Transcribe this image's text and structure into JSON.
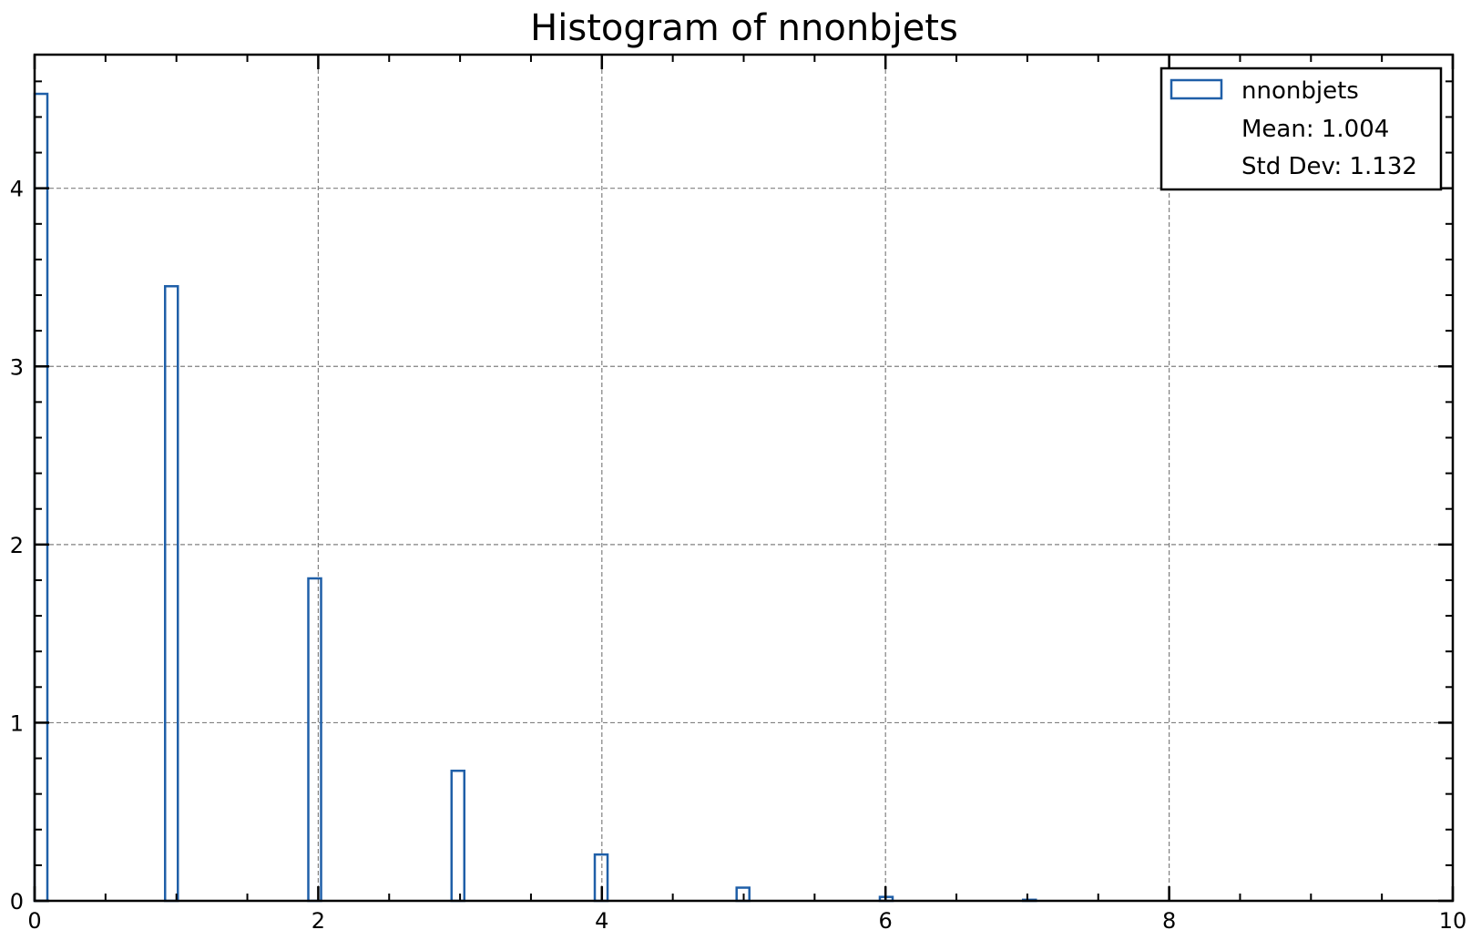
{
  "chart_data": {
    "type": "bar",
    "title": "Histogram of nnonbjets",
    "xlabel": "",
    "ylabel": "",
    "xlim": [
      0,
      10
    ],
    "ylim": [
      0,
      4.75
    ],
    "x_ticks": [
      "0",
      "2",
      "4",
      "6",
      "8",
      "10"
    ],
    "y_ticks": [
      "0",
      "1",
      "2",
      "3",
      "4"
    ],
    "grid": true,
    "legend_position": "top-right",
    "series": [
      {
        "name": "nnonbjets",
        "color": "#1f5fa8",
        "style": "step-outline",
        "bins": [
          {
            "x0": 0.0,
            "x1": 0.09,
            "value": 4.53
          },
          {
            "x0": 0.92,
            "x1": 1.01,
            "value": 3.45
          },
          {
            "x0": 1.93,
            "x1": 2.02,
            "value": 1.81
          },
          {
            "x0": 2.94,
            "x1": 3.03,
            "value": 0.73
          },
          {
            "x0": 3.95,
            "x1": 4.04,
            "value": 0.26
          },
          {
            "x0": 4.95,
            "x1": 5.04,
            "value": 0.074
          },
          {
            "x0": 5.96,
            "x1": 6.05,
            "value": 0.022
          },
          {
            "x0": 6.97,
            "x1": 7.06,
            "value": 0.006
          }
        ]
      }
    ],
    "stats": {
      "mean_label": "Mean: 1.004",
      "std_label": "Std Dev: 1.132"
    }
  }
}
